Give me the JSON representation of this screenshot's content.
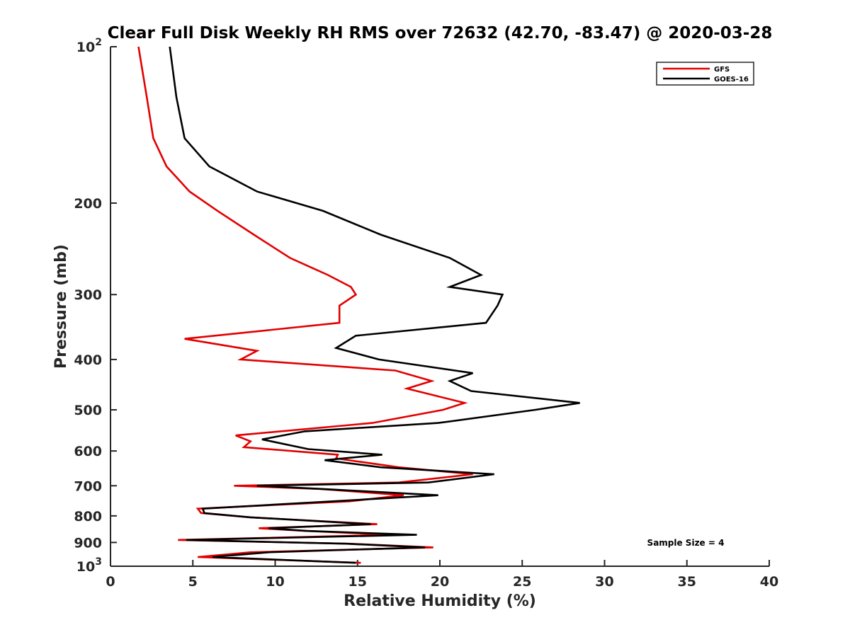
{
  "chart_data": {
    "type": "line",
    "title": "Clear Full Disk Weekly RH RMS over 72632 (42.70, -83.47) @ 2020-03-28",
    "xlabel": "Relative Humidity (%)",
    "ylabel": "Pressure (mb)",
    "xlim": [
      0,
      40
    ],
    "ylim": [
      100,
      1000
    ],
    "y_scale": "log",
    "y_reversed": true,
    "xticks": [
      {
        "value": 0,
        "label": "0"
      },
      {
        "value": 5,
        "label": "5"
      },
      {
        "value": 10,
        "label": "10"
      },
      {
        "value": 15,
        "label": "15"
      },
      {
        "value": 20,
        "label": "20"
      },
      {
        "value": 25,
        "label": "25"
      },
      {
        "value": 30,
        "label": "30"
      },
      {
        "value": 35,
        "label": "35"
      },
      {
        "value": 40,
        "label": "40"
      }
    ],
    "yticks": [
      {
        "value": 100,
        "base": "10",
        "exp": "2"
      },
      {
        "value": 200,
        "label": "200"
      },
      {
        "value": 300,
        "label": "300"
      },
      {
        "value": 400,
        "label": "400"
      },
      {
        "value": 500,
        "label": "500"
      },
      {
        "value": 600,
        "label": "600"
      },
      {
        "value": 700,
        "label": "700"
      },
      {
        "value": 800,
        "label": "800"
      },
      {
        "value": 900,
        "label": "900"
      },
      {
        "value": 1000,
        "base": "10",
        "exp": "3"
      }
    ],
    "legend_position": "top-right",
    "grid": false,
    "annotation": "Sample Size = 4",
    "series": [
      {
        "name": "GFS",
        "color": "#e30000",
        "points": [
          [
            1.7,
            100
          ],
          [
            2.2,
            125
          ],
          [
            2.6,
            150
          ],
          [
            3.4,
            170
          ],
          [
            4.8,
            190
          ],
          [
            6.5,
            207
          ],
          [
            8.7,
            230
          ],
          [
            10.9,
            255
          ],
          [
            13.2,
            275
          ],
          [
            14.6,
            290
          ],
          [
            14.9,
            300
          ],
          [
            13.9,
            315
          ],
          [
            13.9,
            340
          ],
          [
            4.5,
            365
          ],
          [
            8.9,
            385
          ],
          [
            7.9,
            400
          ],
          [
            17.3,
            420
          ],
          [
            19.5,
            440
          ],
          [
            18.0,
            455
          ],
          [
            21.5,
            485
          ],
          [
            20.2,
            500
          ],
          [
            15.9,
            530
          ],
          [
            7.6,
            560
          ],
          [
            8.5,
            575
          ],
          [
            8.1,
            590
          ],
          [
            13.8,
            610
          ],
          [
            13.7,
            620
          ],
          [
            17.5,
            645
          ],
          [
            22.0,
            665
          ],
          [
            17.5,
            690
          ],
          [
            7.5,
            700
          ],
          [
            12.7,
            710
          ],
          [
            17.8,
            730
          ],
          [
            14.5,
            750
          ],
          [
            5.3,
            775
          ],
          [
            5.5,
            790
          ],
          [
            8.5,
            805
          ],
          [
            16.2,
            830
          ],
          [
            9.0,
            845
          ],
          [
            11.8,
            855
          ],
          [
            17.1,
            870
          ],
          [
            4.1,
            890
          ],
          [
            14.5,
            905
          ],
          [
            19.6,
            920
          ],
          [
            8.5,
            940
          ],
          [
            5.3,
            960
          ],
          [
            15.2,
            985
          ]
        ]
      },
      {
        "name": "GOES-16",
        "color": "#000000",
        "points": [
          [
            3.6,
            100
          ],
          [
            4.0,
            125
          ],
          [
            4.5,
            150
          ],
          [
            6.0,
            170
          ],
          [
            8.9,
            190
          ],
          [
            12.9,
            207
          ],
          [
            16.4,
            230
          ],
          [
            20.6,
            255
          ],
          [
            22.5,
            275
          ],
          [
            20.6,
            290
          ],
          [
            23.8,
            300
          ],
          [
            23.5,
            315
          ],
          [
            22.8,
            340
          ],
          [
            14.9,
            360
          ],
          [
            13.7,
            380
          ],
          [
            16.3,
            400
          ],
          [
            22.0,
            425
          ],
          [
            20.6,
            440
          ],
          [
            21.9,
            460
          ],
          [
            28.5,
            485
          ],
          [
            25.8,
            500
          ],
          [
            19.9,
            530
          ],
          [
            11.8,
            550
          ],
          [
            9.2,
            570
          ],
          [
            12.0,
            595
          ],
          [
            16.5,
            610
          ],
          [
            13.0,
            625
          ],
          [
            16.4,
            645
          ],
          [
            23.3,
            665
          ],
          [
            19.3,
            690
          ],
          [
            8.9,
            700
          ],
          [
            12.8,
            710
          ],
          [
            19.9,
            730
          ],
          [
            13.5,
            750
          ],
          [
            5.6,
            775
          ],
          [
            5.7,
            790
          ],
          [
            8.5,
            805
          ],
          [
            15.8,
            830
          ],
          [
            9.6,
            845
          ],
          [
            11.9,
            855
          ],
          [
            18.6,
            870
          ],
          [
            4.6,
            890
          ],
          [
            14.3,
            905
          ],
          [
            19.1,
            920
          ],
          [
            9.6,
            940
          ],
          [
            6.2,
            960
          ],
          [
            14.9,
            985
          ]
        ]
      }
    ]
  }
}
